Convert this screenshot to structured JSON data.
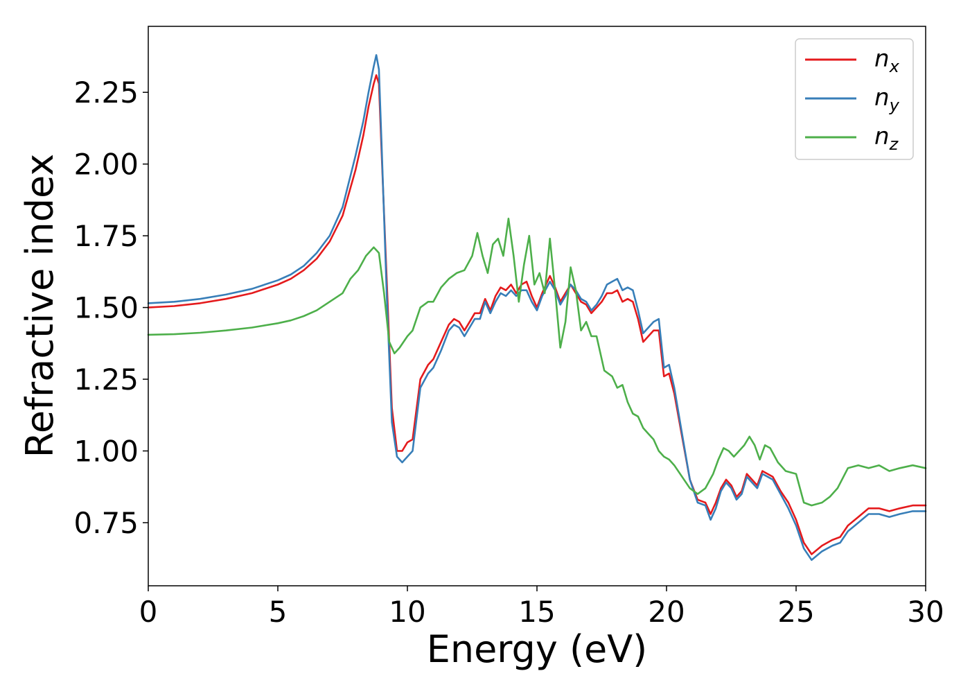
{
  "chart_data": {
    "type": "line",
    "title": "",
    "xlabel": "Energy (eV)",
    "ylabel": "Refractive index",
    "xlim": [
      0,
      30
    ],
    "ylim": [
      0.53,
      2.48
    ],
    "xticks": [
      0,
      5,
      10,
      15,
      20,
      25,
      30
    ],
    "xtick_labels": [
      "0",
      "5",
      "10",
      "15",
      "20",
      "25",
      "30"
    ],
    "yticks": [
      0.75,
      1.0,
      1.25,
      1.5,
      1.75,
      2.0,
      2.25
    ],
    "ytick_labels": [
      "0.75",
      "1.00",
      "1.25",
      "1.50",
      "1.75",
      "2.00",
      "2.25"
    ],
    "grid": false,
    "legend_position": "top-right",
    "series": [
      {
        "name": "n_x",
        "label_base": "n",
        "label_sub": "x",
        "color": "#e41a1c",
        "points": [
          [
            0,
            1.5
          ],
          [
            1,
            1.505
          ],
          [
            2,
            1.515
          ],
          [
            3,
            1.53
          ],
          [
            4,
            1.55
          ],
          [
            5,
            1.58
          ],
          [
            5.5,
            1.6
          ],
          [
            6,
            1.63
          ],
          [
            6.5,
            1.67
          ],
          [
            7,
            1.73
          ],
          [
            7.5,
            1.82
          ],
          [
            8,
            1.98
          ],
          [
            8.3,
            2.1
          ],
          [
            8.5,
            2.2
          ],
          [
            8.7,
            2.28
          ],
          [
            8.8,
            2.31
          ],
          [
            8.9,
            2.28
          ],
          [
            9.0,
            2.05
          ],
          [
            9.2,
            1.6
          ],
          [
            9.4,
            1.15
          ],
          [
            9.6,
            1.0
          ],
          [
            9.8,
            1.0
          ],
          [
            10.0,
            1.03
          ],
          [
            10.2,
            1.04
          ],
          [
            10.5,
            1.25
          ],
          [
            10.8,
            1.3
          ],
          [
            11.0,
            1.32
          ],
          [
            11.3,
            1.38
          ],
          [
            11.6,
            1.44
          ],
          [
            11.8,
            1.46
          ],
          [
            12.0,
            1.45
          ],
          [
            12.2,
            1.42
          ],
          [
            12.4,
            1.45
          ],
          [
            12.6,
            1.48
          ],
          [
            12.8,
            1.48
          ],
          [
            13.0,
            1.53
          ],
          [
            13.2,
            1.49
          ],
          [
            13.4,
            1.54
          ],
          [
            13.6,
            1.57
          ],
          [
            13.8,
            1.56
          ],
          [
            14.0,
            1.58
          ],
          [
            14.2,
            1.55
          ],
          [
            14.4,
            1.58
          ],
          [
            14.6,
            1.59
          ],
          [
            14.8,
            1.54
          ],
          [
            15.0,
            1.5
          ],
          [
            15.2,
            1.55
          ],
          [
            15.5,
            1.61
          ],
          [
            15.7,
            1.57
          ],
          [
            15.9,
            1.52
          ],
          [
            16.1,
            1.55
          ],
          [
            16.3,
            1.58
          ],
          [
            16.5,
            1.55
          ],
          [
            16.7,
            1.52
          ],
          [
            16.9,
            1.51
          ],
          [
            17.1,
            1.48
          ],
          [
            17.3,
            1.5
          ],
          [
            17.5,
            1.52
          ],
          [
            17.7,
            1.55
          ],
          [
            17.9,
            1.55
          ],
          [
            18.1,
            1.56
          ],
          [
            18.3,
            1.52
          ],
          [
            18.5,
            1.53
          ],
          [
            18.7,
            1.52
          ],
          [
            18.9,
            1.46
          ],
          [
            19.1,
            1.38
          ],
          [
            19.3,
            1.4
          ],
          [
            19.5,
            1.42
          ],
          [
            19.7,
            1.42
          ],
          [
            19.9,
            1.26
          ],
          [
            20.1,
            1.27
          ],
          [
            20.3,
            1.2
          ],
          [
            20.6,
            1.05
          ],
          [
            20.9,
            0.9
          ],
          [
            21.2,
            0.83
          ],
          [
            21.5,
            0.82
          ],
          [
            21.7,
            0.78
          ],
          [
            21.9,
            0.82
          ],
          [
            22.1,
            0.87
          ],
          [
            22.3,
            0.9
          ],
          [
            22.5,
            0.88
          ],
          [
            22.7,
            0.84
          ],
          [
            22.9,
            0.86
          ],
          [
            23.1,
            0.92
          ],
          [
            23.3,
            0.9
          ],
          [
            23.5,
            0.88
          ],
          [
            23.7,
            0.93
          ],
          [
            23.9,
            0.92
          ],
          [
            24.1,
            0.91
          ],
          [
            24.4,
            0.86
          ],
          [
            24.7,
            0.82
          ],
          [
            25.0,
            0.76
          ],
          [
            25.3,
            0.68
          ],
          [
            25.6,
            0.64
          ],
          [
            26.0,
            0.67
          ],
          [
            26.4,
            0.69
          ],
          [
            26.7,
            0.7
          ],
          [
            27.0,
            0.74
          ],
          [
            27.4,
            0.77
          ],
          [
            27.8,
            0.8
          ],
          [
            28.2,
            0.8
          ],
          [
            28.6,
            0.79
          ],
          [
            29.0,
            0.8
          ],
          [
            29.5,
            0.81
          ],
          [
            30.0,
            0.81
          ]
        ]
      },
      {
        "name": "n_y",
        "label_base": "n",
        "label_sub": "y",
        "color": "#377eb8",
        "points": [
          [
            0,
            1.515
          ],
          [
            1,
            1.52
          ],
          [
            2,
            1.53
          ],
          [
            3,
            1.545
          ],
          [
            4,
            1.565
          ],
          [
            5,
            1.595
          ],
          [
            5.5,
            1.615
          ],
          [
            6,
            1.645
          ],
          [
            6.5,
            1.69
          ],
          [
            7,
            1.75
          ],
          [
            7.5,
            1.85
          ],
          [
            8,
            2.03
          ],
          [
            8.3,
            2.15
          ],
          [
            8.5,
            2.25
          ],
          [
            8.7,
            2.34
          ],
          [
            8.8,
            2.38
          ],
          [
            8.9,
            2.33
          ],
          [
            9.0,
            2.08
          ],
          [
            9.2,
            1.55
          ],
          [
            9.4,
            1.1
          ],
          [
            9.6,
            0.98
          ],
          [
            9.8,
            0.96
          ],
          [
            10.0,
            0.98
          ],
          [
            10.2,
            1.0
          ],
          [
            10.5,
            1.22
          ],
          [
            10.8,
            1.27
          ],
          [
            11.0,
            1.29
          ],
          [
            11.3,
            1.35
          ],
          [
            11.6,
            1.42
          ],
          [
            11.8,
            1.44
          ],
          [
            12.0,
            1.43
          ],
          [
            12.2,
            1.4
          ],
          [
            12.4,
            1.43
          ],
          [
            12.6,
            1.46
          ],
          [
            12.8,
            1.46
          ],
          [
            13.0,
            1.52
          ],
          [
            13.2,
            1.48
          ],
          [
            13.4,
            1.52
          ],
          [
            13.6,
            1.55
          ],
          [
            13.8,
            1.54
          ],
          [
            14.0,
            1.56
          ],
          [
            14.2,
            1.54
          ],
          [
            14.4,
            1.56
          ],
          [
            14.6,
            1.56
          ],
          [
            14.8,
            1.52
          ],
          [
            15.0,
            1.49
          ],
          [
            15.2,
            1.54
          ],
          [
            15.5,
            1.59
          ],
          [
            15.7,
            1.56
          ],
          [
            15.9,
            1.51
          ],
          [
            16.1,
            1.54
          ],
          [
            16.3,
            1.58
          ],
          [
            16.5,
            1.56
          ],
          [
            16.7,
            1.53
          ],
          [
            16.9,
            1.52
          ],
          [
            17.1,
            1.49
          ],
          [
            17.3,
            1.51
          ],
          [
            17.5,
            1.54
          ],
          [
            17.7,
            1.58
          ],
          [
            17.9,
            1.59
          ],
          [
            18.1,
            1.6
          ],
          [
            18.3,
            1.56
          ],
          [
            18.5,
            1.57
          ],
          [
            18.7,
            1.56
          ],
          [
            18.9,
            1.49
          ],
          [
            19.1,
            1.41
          ],
          [
            19.3,
            1.43
          ],
          [
            19.5,
            1.45
          ],
          [
            19.7,
            1.46
          ],
          [
            19.9,
            1.29
          ],
          [
            20.1,
            1.3
          ],
          [
            20.3,
            1.22
          ],
          [
            20.6,
            1.06
          ],
          [
            20.9,
            0.9
          ],
          [
            21.2,
            0.82
          ],
          [
            21.5,
            0.81
          ],
          [
            21.7,
            0.76
          ],
          [
            21.9,
            0.8
          ],
          [
            22.1,
            0.86
          ],
          [
            22.3,
            0.89
          ],
          [
            22.5,
            0.87
          ],
          [
            22.7,
            0.83
          ],
          [
            22.9,
            0.85
          ],
          [
            23.1,
            0.91
          ],
          [
            23.3,
            0.89
          ],
          [
            23.5,
            0.87
          ],
          [
            23.7,
            0.92
          ],
          [
            23.9,
            0.91
          ],
          [
            24.1,
            0.9
          ],
          [
            24.4,
            0.85
          ],
          [
            24.7,
            0.8
          ],
          [
            25.0,
            0.74
          ],
          [
            25.3,
            0.66
          ],
          [
            25.6,
            0.62
          ],
          [
            26.0,
            0.65
          ],
          [
            26.4,
            0.67
          ],
          [
            26.7,
            0.68
          ],
          [
            27.0,
            0.72
          ],
          [
            27.4,
            0.75
          ],
          [
            27.8,
            0.78
          ],
          [
            28.2,
            0.78
          ],
          [
            28.6,
            0.77
          ],
          [
            29.0,
            0.78
          ],
          [
            29.5,
            0.79
          ],
          [
            30.0,
            0.79
          ]
        ]
      },
      {
        "name": "n_z",
        "label_base": "n",
        "label_sub": "z",
        "color": "#4daf4a",
        "points": [
          [
            0,
            1.405
          ],
          [
            1,
            1.407
          ],
          [
            2,
            1.412
          ],
          [
            3,
            1.42
          ],
          [
            4,
            1.43
          ],
          [
            5,
            1.445
          ],
          [
            5.5,
            1.455
          ],
          [
            6,
            1.47
          ],
          [
            6.5,
            1.49
          ],
          [
            7,
            1.52
          ],
          [
            7.5,
            1.55
          ],
          [
            7.8,
            1.6
          ],
          [
            8.1,
            1.63
          ],
          [
            8.4,
            1.68
          ],
          [
            8.7,
            1.71
          ],
          [
            8.9,
            1.69
          ],
          [
            9.1,
            1.55
          ],
          [
            9.3,
            1.38
          ],
          [
            9.5,
            1.34
          ],
          [
            9.7,
            1.36
          ],
          [
            10.0,
            1.4
          ],
          [
            10.2,
            1.42
          ],
          [
            10.5,
            1.5
          ],
          [
            10.8,
            1.52
          ],
          [
            11.0,
            1.52
          ],
          [
            11.3,
            1.57
          ],
          [
            11.6,
            1.6
          ],
          [
            11.9,
            1.62
          ],
          [
            12.2,
            1.63
          ],
          [
            12.5,
            1.68
          ],
          [
            12.7,
            1.76
          ],
          [
            12.9,
            1.68
          ],
          [
            13.1,
            1.62
          ],
          [
            13.3,
            1.72
          ],
          [
            13.5,
            1.74
          ],
          [
            13.7,
            1.68
          ],
          [
            13.9,
            1.81
          ],
          [
            14.1,
            1.68
          ],
          [
            14.3,
            1.52
          ],
          [
            14.5,
            1.65
          ],
          [
            14.7,
            1.75
          ],
          [
            14.9,
            1.58
          ],
          [
            15.1,
            1.62
          ],
          [
            15.3,
            1.55
          ],
          [
            15.5,
            1.74
          ],
          [
            15.7,
            1.56
          ],
          [
            15.9,
            1.36
          ],
          [
            16.1,
            1.45
          ],
          [
            16.3,
            1.64
          ],
          [
            16.5,
            1.56
          ],
          [
            16.7,
            1.42
          ],
          [
            16.9,
            1.45
          ],
          [
            17.1,
            1.4
          ],
          [
            17.3,
            1.4
          ],
          [
            17.6,
            1.28
          ],
          [
            17.9,
            1.26
          ],
          [
            18.1,
            1.22
          ],
          [
            18.3,
            1.23
          ],
          [
            18.5,
            1.17
          ],
          [
            18.7,
            1.13
          ],
          [
            18.9,
            1.12
          ],
          [
            19.1,
            1.08
          ],
          [
            19.3,
            1.06
          ],
          [
            19.5,
            1.04
          ],
          [
            19.7,
            1.0
          ],
          [
            19.9,
            0.98
          ],
          [
            20.1,
            0.97
          ],
          [
            20.3,
            0.95
          ],
          [
            20.6,
            0.91
          ],
          [
            20.9,
            0.87
          ],
          [
            21.2,
            0.85
          ],
          [
            21.5,
            0.87
          ],
          [
            21.8,
            0.92
          ],
          [
            22.0,
            0.97
          ],
          [
            22.2,
            1.01
          ],
          [
            22.4,
            1.0
          ],
          [
            22.6,
            0.98
          ],
          [
            22.8,
            1.0
          ],
          [
            23.0,
            1.02
          ],
          [
            23.2,
            1.05
          ],
          [
            23.4,
            1.02
          ],
          [
            23.6,
            0.97
          ],
          [
            23.8,
            1.02
          ],
          [
            24.0,
            1.01
          ],
          [
            24.3,
            0.96
          ],
          [
            24.6,
            0.93
          ],
          [
            25.0,
            0.92
          ],
          [
            25.3,
            0.82
          ],
          [
            25.6,
            0.81
          ],
          [
            26.0,
            0.82
          ],
          [
            26.3,
            0.84
          ],
          [
            26.6,
            0.87
          ],
          [
            27.0,
            0.94
          ],
          [
            27.4,
            0.95
          ],
          [
            27.8,
            0.94
          ],
          [
            28.2,
            0.95
          ],
          [
            28.6,
            0.93
          ],
          [
            29.0,
            0.94
          ],
          [
            29.5,
            0.95
          ],
          [
            30.0,
            0.94
          ]
        ]
      }
    ]
  }
}
